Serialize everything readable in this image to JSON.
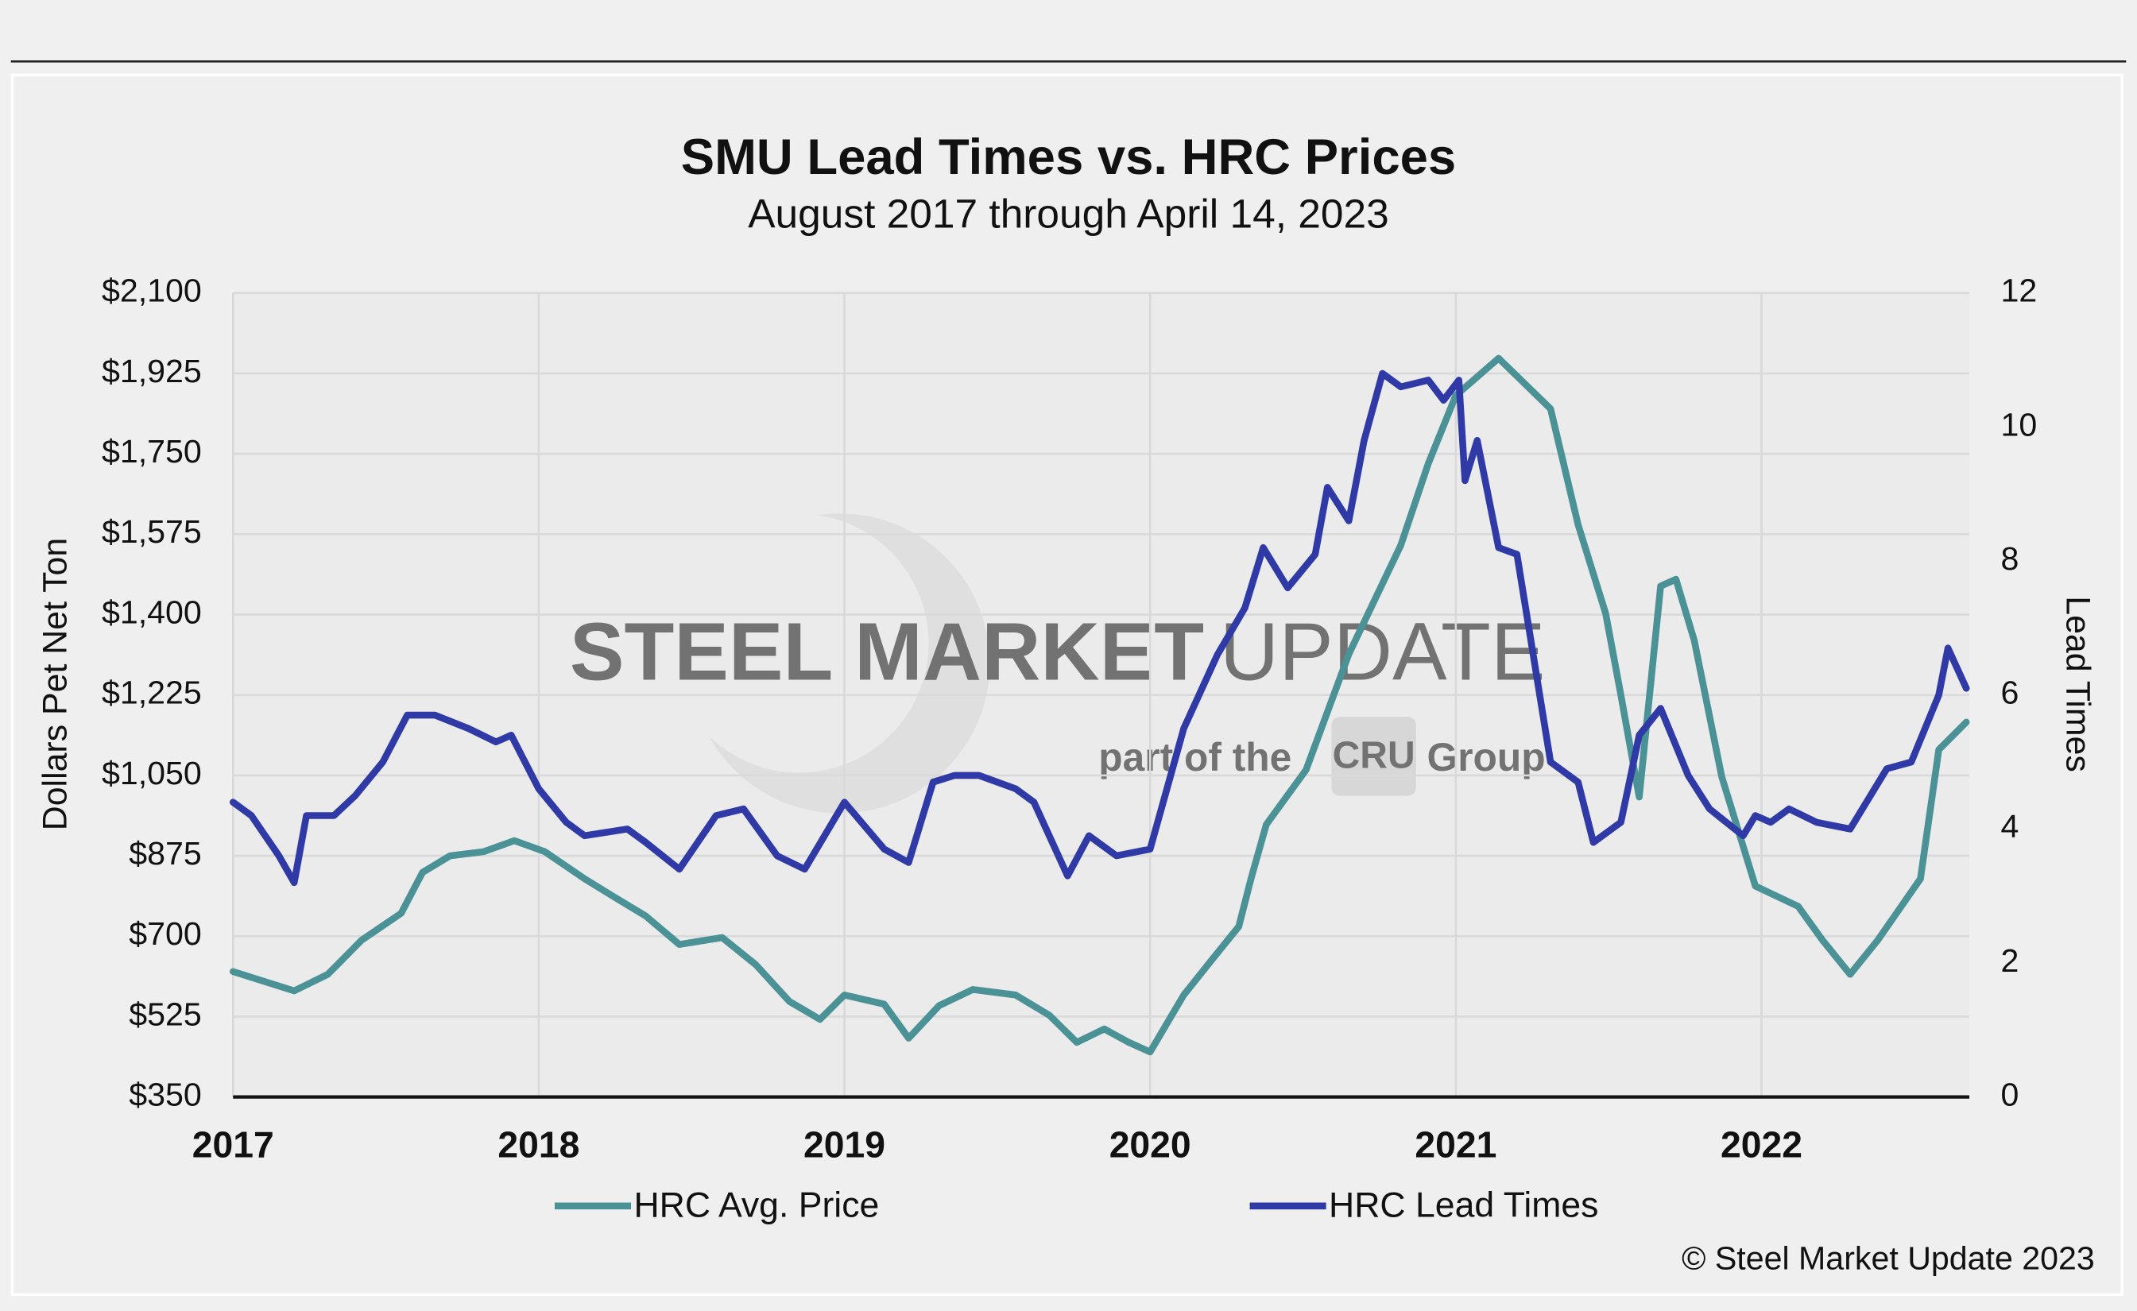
{
  "chart_data": {
    "type": "line",
    "title": "SMU Lead Times vs. HRC Prices",
    "subtitle": "August 2017 through April 14, 2023",
    "y_label": "Dollars Pet Net Ton",
    "y2_label": "Lead Times",
    "footer": "© Steel Market Update 2023",
    "watermark": [
      "STEEL MARKET",
      "UPDATE",
      "part of the",
      "CRU",
      "Group"
    ],
    "xlim": [
      2017,
      2022.68
    ],
    "xticks": [
      2017,
      2018,
      2019,
      2020,
      2021,
      2022
    ],
    "ylim": [
      350,
      2100
    ],
    "yticks": [
      {
        "value": 350,
        "label": "$350"
      },
      {
        "value": 525,
        "label": "$525"
      },
      {
        "value": 700,
        "label": "$700"
      },
      {
        "value": 875,
        "label": "$875"
      },
      {
        "value": 1050,
        "label": "$1,050"
      },
      {
        "value": 1225,
        "label": "$1,225"
      },
      {
        "value": 1400,
        "label": "$1,400"
      },
      {
        "value": 1575,
        "label": "$1,575"
      },
      {
        "value": 1750,
        "label": "$1,750"
      },
      {
        "value": 1925,
        "label": "$1,925"
      },
      {
        "value": 2100,
        "label": "$2,100"
      }
    ],
    "y2lim": [
      0,
      12
    ],
    "y2ticks": [
      0,
      2,
      4,
      6,
      8,
      10,
      12
    ],
    "grid": true,
    "legend": "bottom",
    "series": [
      {
        "name": "HRC Avg. Price",
        "color": "#4b9297",
        "x": [
          2017.0,
          2017.2,
          2017.31,
          2017.42,
          2017.55,
          2017.62,
          2017.71,
          2017.82,
          2017.92,
          2018.02,
          2018.15,
          2018.26,
          2018.35,
          2018.46,
          2018.6,
          2018.71,
          2018.82,
          2018.92,
          2019.0,
          2019.13,
          2019.21,
          2019.31,
          2019.42,
          2019.56,
          2019.67,
          2019.76,
          2019.85,
          2019.93,
          2020.0,
          2020.11,
          2020.2,
          2020.29,
          2020.33,
          2020.38,
          2020.51,
          2020.65,
          2020.82,
          2020.91,
          2021.0,
          2021.14,
          2021.31,
          2021.4,
          2021.49,
          2021.54,
          2021.6,
          2021.67,
          2021.72,
          2021.78,
          2021.87,
          2021.98,
          2022.12,
          2022.2,
          2022.29,
          2022.38,
          2022.52,
          2022.58,
          2022.67
        ],
        "values": [
          623,
          581,
          617,
          691,
          750,
          839,
          875,
          884,
          908,
          884,
          825,
          780,
          744,
          682,
          697,
          638,
          558,
          519,
          572,
          552,
          478,
          549,
          584,
          572,
          528,
          469,
          498,
          469,
          448,
          572,
          647,
          721,
          825,
          943,
          1062,
          1314,
          1551,
          1729,
          1877,
          1958,
          1848,
          1596,
          1403,
          1225,
          1003,
          1462,
          1477,
          1344,
          1047,
          809,
          765,
          691,
          617,
          691,
          825,
          1106,
          1166
        ]
      },
      {
        "name": "HRC Lead Times",
        "color": "#2f3aa6",
        "axis": "y2",
        "x": [
          2017.0,
          2017.06,
          2017.15,
          2017.2,
          2017.24,
          2017.33,
          2017.4,
          2017.49,
          2017.57,
          2017.66,
          2017.77,
          2017.86,
          2017.91,
          2018.0,
          2018.09,
          2018.15,
          2018.29,
          2018.35,
          2018.46,
          2018.58,
          2018.67,
          2018.78,
          2018.87,
          2019.0,
          2019.13,
          2019.21,
          2019.29,
          2019.36,
          2019.44,
          2019.56,
          2019.62,
          2019.73,
          2019.8,
          2019.89,
          2020.0,
          2020.11,
          2020.22,
          2020.31,
          2020.37,
          2020.45,
          2020.54,
          2020.58,
          2020.65,
          2020.7,
          2020.76,
          2020.82,
          2020.91,
          2020.96,
          2021.01,
          2021.03,
          2021.07,
          2021.14,
          2021.2,
          2021.31,
          2021.4,
          2021.45,
          2021.54,
          2021.6,
          2021.67,
          2021.76,
          2021.83,
          2021.94,
          2021.98,
          2022.03,
          2022.09,
          2022.18,
          2022.29,
          2022.41,
          2022.49,
          2022.58,
          2022.61,
          2022.67
        ],
        "values": [
          4.4,
          4.2,
          3.6,
          3.2,
          4.2,
          4.2,
          4.5,
          5.0,
          5.7,
          5.7,
          5.5,
          5.3,
          5.4,
          4.6,
          4.1,
          3.9,
          4.0,
          3.8,
          3.4,
          4.2,
          4.3,
          3.6,
          3.4,
          4.4,
          3.7,
          3.5,
          4.7,
          4.8,
          4.8,
          4.6,
          4.4,
          3.3,
          3.9,
          3.6,
          3.7,
          5.5,
          6.6,
          7.3,
          8.2,
          7.6,
          8.1,
          9.1,
          8.6,
          9.8,
          10.8,
          10.6,
          10.7,
          10.4,
          10.7,
          9.2,
          9.8,
          8.2,
          8.1,
          5.0,
          4.7,
          3.8,
          4.1,
          5.4,
          5.8,
          4.8,
          4.3,
          3.9,
          4.2,
          4.1,
          4.3,
          4.1,
          4.0,
          4.9,
          5.0,
          6.0,
          6.7,
          6.1
        ]
      }
    ]
  }
}
